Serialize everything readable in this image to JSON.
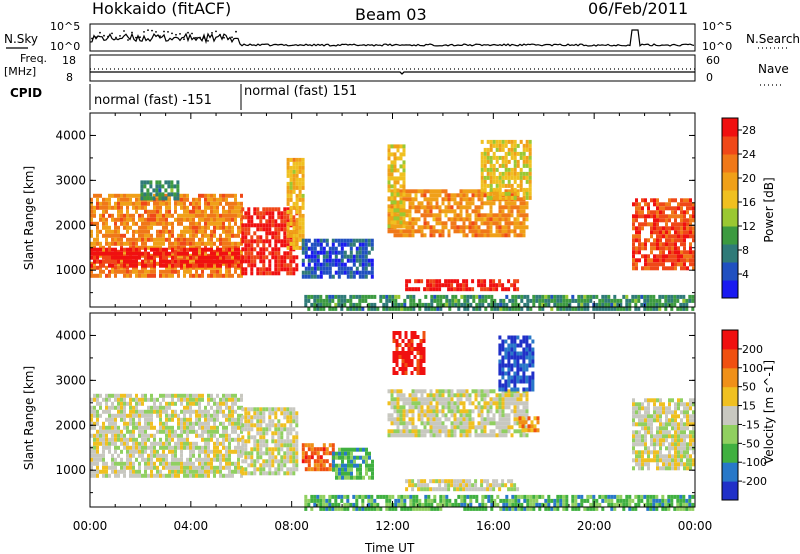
{
  "header": {
    "station": "Hokkaido (fitACF)",
    "beam": "Beam 03",
    "date": "06/Feb/2011"
  },
  "top_panels": {
    "nsky_label": "N.Sky",
    "nsky_ticks": [
      "10^5",
      "10^0"
    ],
    "nsearch_label": "N.Search",
    "nsearch_ticks": [
      "10^5",
      "10^0"
    ],
    "freq_label_1": "Freq.",
    "freq_label_2": "[MHz]",
    "freq_ticks": [
      "18",
      "8"
    ],
    "nave_label": "Nave",
    "nave_ticks": [
      "60",
      "0"
    ],
    "cpid_label": "CPID",
    "cpid_segments": [
      {
        "label": "normal (fast) -151",
        "start_hour": 0,
        "end_hour": 6
      },
      {
        "label": "normal (fast) 151",
        "start_hour": 6,
        "end_hour": 24
      }
    ]
  },
  "chart_data": [
    {
      "type": "heatmap",
      "title": "",
      "xlabel": "Time UT",
      "ylabel": "Slant Range [km]",
      "xlim": [
        0,
        24
      ],
      "ylim": [
        180,
        4500
      ],
      "x_ticks": [
        "00:00",
        "04:00",
        "08:00",
        "12:00",
        "16:00",
        "20:00",
        "00:00"
      ],
      "y_ticks": [
        "1000",
        "2000",
        "3000",
        "4000"
      ],
      "colorbar": {
        "label": "Power [dB]",
        "ticks": [
          "4",
          "8",
          "12",
          "16",
          "20",
          "24",
          "28"
        ],
        "range": [
          0,
          30
        ],
        "colors": [
          "#1a1af0",
          "#2050c0",
          "#2f7a78",
          "#3c9a40",
          "#9ac832",
          "#f0c020",
          "#f0a018",
          "#f07818",
          "#f04818",
          "#f01010"
        ]
      },
      "regions": [
        {
          "t0": 0.0,
          "t1": 6.0,
          "r0": 900,
          "r1": 2700,
          "level": 0.72
        },
        {
          "t0": 0.0,
          "t1": 6.0,
          "r0": 1100,
          "r1": 1500,
          "level": 0.95
        },
        {
          "t0": 6.0,
          "t1": 8.2,
          "r0": 900,
          "r1": 2400,
          "level": 0.92
        },
        {
          "t0": 7.8,
          "t1": 8.4,
          "r0": 1500,
          "r1": 3500,
          "level": 0.6
        },
        {
          "t0": 8.4,
          "t1": 11.2,
          "r0": 850,
          "r1": 1700,
          "level": 0.15
        },
        {
          "t0": 11.8,
          "t1": 17.3,
          "r0": 1800,
          "r1": 2800,
          "level": 0.7
        },
        {
          "t0": 11.8,
          "t1": 12.5,
          "r0": 2000,
          "r1": 3800,
          "level": 0.55
        },
        {
          "t0": 15.5,
          "t1": 17.5,
          "r0": 2600,
          "r1": 3900,
          "level": 0.55
        },
        {
          "t0": 12.5,
          "t1": 17.0,
          "r0": 600,
          "r1": 800,
          "level": 0.97
        },
        {
          "t0": 8.5,
          "t1": 23.9,
          "r0": 180,
          "r1": 450,
          "level": 0.3
        },
        {
          "t0": 21.5,
          "t1": 23.9,
          "r0": 1000,
          "r1": 2600,
          "level": 0.85
        },
        {
          "t0": 2.0,
          "t1": 3.5,
          "r0": 2600,
          "r1": 3000,
          "level": 0.3
        }
      ]
    },
    {
      "type": "heatmap",
      "title": "",
      "xlabel": "Time UT",
      "ylabel": "Slant Range [km]",
      "xlim": [
        0,
        24
      ],
      "ylim": [
        180,
        4500
      ],
      "x_ticks": [
        "00:00",
        "04:00",
        "08:00",
        "12:00",
        "16:00",
        "20:00",
        "00:00"
      ],
      "y_ticks": [
        "1000",
        "2000",
        "3000",
        "4000"
      ],
      "colorbar": {
        "label": "Velocity [m s^-1]",
        "ticks": [
          "200",
          "100",
          "50",
          "15",
          "-15",
          "-50",
          "-100",
          "-200"
        ],
        "range": [
          -250,
          250
        ],
        "colors": [
          "#2030c8",
          "#2878c8",
          "#40b040",
          "#90d060",
          "#c8c8c0",
          "#f0c020",
          "#f09018",
          "#f05010",
          "#f01010"
        ]
      },
      "regions": [
        {
          "t0": 0.0,
          "t1": 6.0,
          "r0": 900,
          "r1": 2700,
          "level": 0.5
        },
        {
          "t0": 6.0,
          "t1": 8.2,
          "r0": 900,
          "r1": 2400,
          "level": 0.5
        },
        {
          "t0": 8.4,
          "t1": 9.6,
          "r0": 1000,
          "r1": 1600,
          "level": 0.8
        },
        {
          "t0": 9.6,
          "t1": 11.2,
          "r0": 850,
          "r1": 1500,
          "level": 0.28
        },
        {
          "t0": 11.8,
          "t1": 17.3,
          "r0": 1800,
          "r1": 2800,
          "level": 0.5
        },
        {
          "t0": 12.0,
          "t1": 13.2,
          "r0": 3200,
          "r1": 4100,
          "level": 0.95
        },
        {
          "t0": 16.2,
          "t1": 17.6,
          "r0": 2800,
          "r1": 4000,
          "level": 0.08
        },
        {
          "t0": 12.5,
          "t1": 17.0,
          "r0": 600,
          "r1": 800,
          "level": 0.5
        },
        {
          "t0": 8.5,
          "t1": 23.9,
          "r0": 180,
          "r1": 450,
          "level": 0.3
        },
        {
          "t0": 21.5,
          "t1": 23.9,
          "r0": 1000,
          "r1": 2600,
          "level": 0.5
        },
        {
          "t0": 17.0,
          "t1": 17.8,
          "r0": 1900,
          "r1": 2200,
          "level": 0.75
        }
      ]
    }
  ]
}
